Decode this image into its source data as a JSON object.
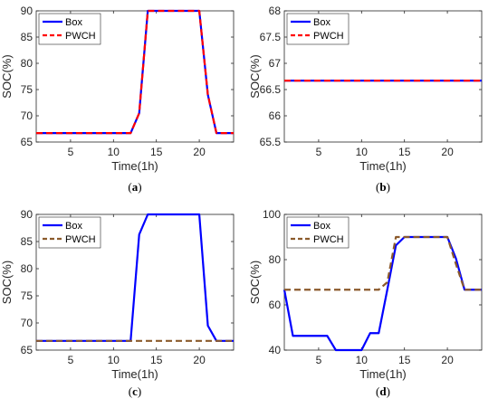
{
  "chart_data": [
    {
      "type": "line",
      "panel_label": "a",
      "xlabel": "Time(1h)",
      "ylabel": "SOC(%)",
      "xlim": [
        1,
        24
      ],
      "ylim": [
        65,
        90
      ],
      "xticks": [
        5,
        10,
        15,
        20
      ],
      "yticks": [
        65,
        70,
        75,
        80,
        85,
        90
      ],
      "legend": "top-left",
      "series": [
        {
          "name": "Box",
          "color": "#0000ff",
          "style": "solid",
          "x": [
            1,
            2,
            3,
            4,
            5,
            6,
            7,
            8,
            9,
            10,
            11,
            12,
            13,
            14,
            15,
            16,
            17,
            18,
            19,
            20,
            21,
            22,
            23,
            24
          ],
          "y": [
            66.7,
            66.7,
            66.7,
            66.7,
            66.7,
            66.7,
            66.7,
            66.7,
            66.7,
            66.7,
            66.7,
            66.7,
            70.5,
            90,
            90,
            90,
            90,
            90,
            90,
            90,
            74,
            66.7,
            66.7,
            66.7
          ]
        },
        {
          "name": "PWCH",
          "color": "#ff0000",
          "style": "dashed",
          "x": [
            1,
            2,
            3,
            4,
            5,
            6,
            7,
            8,
            9,
            10,
            11,
            12,
            13,
            14,
            15,
            16,
            17,
            18,
            19,
            20,
            21,
            22,
            23,
            24
          ],
          "y": [
            66.7,
            66.7,
            66.7,
            66.7,
            66.7,
            66.7,
            66.7,
            66.7,
            66.7,
            66.7,
            66.7,
            66.7,
            70.5,
            90,
            90,
            90,
            90,
            90,
            90,
            90,
            74,
            66.7,
            66.7,
            66.7
          ]
        }
      ]
    },
    {
      "type": "line",
      "panel_label": "b",
      "xlabel": "Time(1h)",
      "ylabel": "SOC(%)",
      "xlim": [
        1,
        24
      ],
      "ylim": [
        65.5,
        68
      ],
      "xticks": [
        5,
        10,
        15,
        20
      ],
      "yticks": [
        65.5,
        66,
        66.5,
        67,
        67.5,
        68
      ],
      "legend": "top-left",
      "series": [
        {
          "name": "Box",
          "color": "#0000ff",
          "style": "solid",
          "x": [
            1,
            24
          ],
          "y": [
            66.67,
            66.67
          ]
        },
        {
          "name": "PWCH",
          "color": "#ff0000",
          "style": "dashed",
          "x": [
            1,
            24
          ],
          "y": [
            66.67,
            66.67
          ]
        }
      ]
    },
    {
      "type": "line",
      "panel_label": "c",
      "xlabel": "Time(1h)",
      "ylabel": "SOC(%)",
      "xlim": [
        1,
        24
      ],
      "ylim": [
        65,
        90
      ],
      "xticks": [
        5,
        10,
        15,
        20
      ],
      "yticks": [
        65,
        70,
        75,
        80,
        85,
        90
      ],
      "legend": "top-left",
      "series": [
        {
          "name": "Box",
          "color": "#0000ff",
          "style": "solid",
          "x": [
            1,
            2,
            3,
            4,
            5,
            6,
            7,
            8,
            9,
            10,
            11,
            12,
            13,
            14,
            15,
            16,
            17,
            18,
            19,
            20,
            21,
            22,
            23,
            24
          ],
          "y": [
            66.7,
            66.7,
            66.7,
            66.7,
            66.7,
            66.7,
            66.7,
            66.7,
            66.7,
            66.7,
            66.7,
            66.7,
            86.3,
            90,
            90,
            90,
            90,
            90,
            90,
            90,
            69.5,
            66.7,
            66.7,
            66.7
          ]
        },
        {
          "name": "PWCH",
          "color": "#8b5a2b",
          "style": "dashed",
          "x": [
            1,
            24
          ],
          "y": [
            66.7,
            66.7
          ]
        }
      ]
    },
    {
      "type": "line",
      "panel_label": "d",
      "xlabel": "Time(1h)",
      "ylabel": "SOC(%)",
      "xlim": [
        1,
        24
      ],
      "ylim": [
        40,
        100
      ],
      "xticks": [
        5,
        10,
        15,
        20
      ],
      "yticks": [
        40,
        60,
        80,
        100
      ],
      "legend": "top-left",
      "series": [
        {
          "name": "Box",
          "color": "#0000ff",
          "style": "solid",
          "x": [
            1,
            2,
            3,
            4,
            5,
            6,
            7,
            8,
            9,
            10,
            11,
            12,
            13,
            14,
            15,
            16,
            17,
            18,
            19,
            20,
            21,
            22,
            23,
            24
          ],
          "y": [
            66.7,
            46.3,
            46.3,
            46.3,
            46.3,
            46.3,
            40,
            40,
            40,
            40,
            47.5,
            47.5,
            66.7,
            86.3,
            90,
            90,
            90,
            90,
            90,
            90,
            80.5,
            66.7,
            66.7,
            66.7
          ]
        },
        {
          "name": "PWCH",
          "color": "#8b5a2b",
          "style": "dashed",
          "x": [
            1,
            2,
            3,
            4,
            5,
            6,
            7,
            8,
            9,
            10,
            11,
            12,
            13,
            14,
            15,
            16,
            17,
            18,
            19,
            20,
            21,
            22,
            23,
            24
          ],
          "y": [
            66.7,
            66.7,
            66.7,
            66.7,
            66.7,
            66.7,
            66.7,
            66.7,
            66.7,
            66.7,
            66.7,
            66.7,
            70,
            90,
            90,
            90,
            90,
            90,
            90,
            90,
            78,
            66.7,
            66.7,
            66.7
          ]
        }
      ]
    }
  ]
}
